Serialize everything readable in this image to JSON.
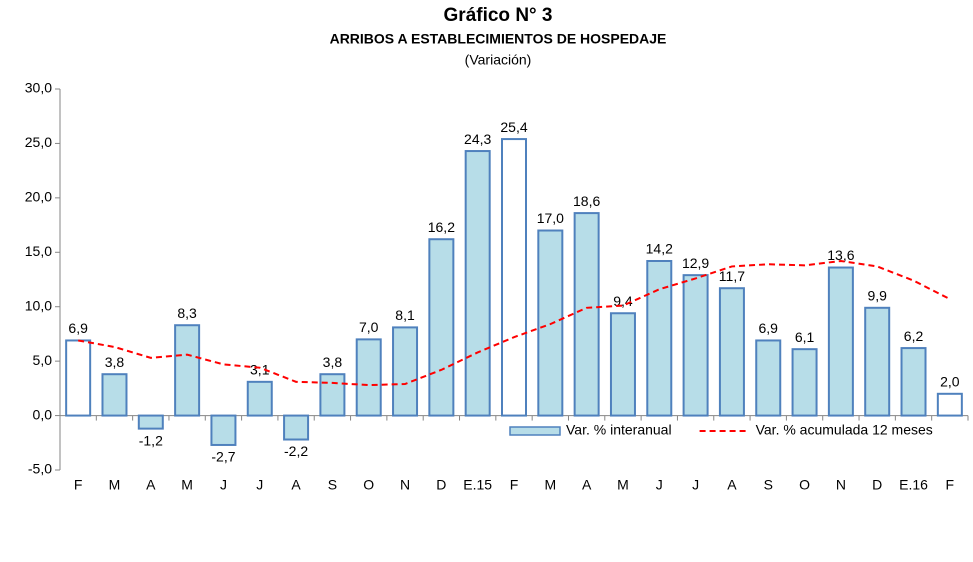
{
  "chart_data": {
    "type": "bar",
    "title": "Gráfico N° 3",
    "subtitle": "ARRIBOS A ESTABLECIMIENTOS DE HOSPEDAJE",
    "y_label": "(Variación)",
    "categories": [
      "F",
      "M",
      "A",
      "M",
      "J",
      "J",
      "A",
      "S",
      "O",
      "N",
      "D",
      "E.15",
      "F",
      "M",
      "A",
      "M",
      "J",
      "J",
      "A",
      "S",
      "O",
      "N",
      "D",
      "E.16",
      "F"
    ],
    "series": [
      {
        "name": "Var. % interanual",
        "type": "bar",
        "color": "#b7dde8",
        "edge_color": "#4f81bd",
        "colors": [
          "#ffffff",
          "#b7dde8",
          "#b7dde8",
          "#b7dde8",
          "#b7dde8",
          "#b7dde8",
          "#b7dde8",
          "#b7dde8",
          "#b7dde8",
          "#b7dde8",
          "#b7dde8",
          "#b7dde8",
          "#ffffff",
          "#b7dde8",
          "#b7dde8",
          "#b7dde8",
          "#b7dde8",
          "#b7dde8",
          "#b7dde8",
          "#b7dde8",
          "#b7dde8",
          "#b7dde8",
          "#b7dde8",
          "#b7dde8",
          "#ffffff"
        ],
        "values": [
          6.9,
          3.8,
          -1.2,
          8.3,
          -2.7,
          3.1,
          -2.2,
          3.8,
          7.0,
          8.1,
          16.2,
          24.3,
          25.4,
          17.0,
          18.6,
          9.4,
          14.2,
          12.9,
          11.7,
          6.9,
          6.1,
          13.6,
          9.9,
          6.2,
          2.0
        ],
        "value_labels": [
          "6,9",
          "3,8",
          "-1,2",
          "8,3",
          "-2,7",
          "3,1",
          "-2,2",
          "3,8",
          "7,0",
          "8,1",
          "16,2",
          "24,3",
          "25,4",
          "17,0",
          "18,6",
          "9,4",
          "14,2",
          "12,9",
          "11,7",
          "6,9",
          "6,1",
          "13,6",
          "9,9",
          "6,2",
          "2,0"
        ]
      },
      {
        "name": "Var. % acumulada 12 meses",
        "type": "line",
        "color": "#ff0000",
        "values": [
          6.9,
          6.3,
          5.3,
          5.6,
          4.7,
          4.4,
          3.1,
          3.0,
          2.8,
          2.9,
          4.2,
          5.8,
          7.2,
          8.4,
          9.9,
          10.1,
          11.6,
          12.6,
          13.7,
          13.9,
          13.8,
          14.2,
          13.7,
          12.4,
          10.7
        ]
      }
    ],
    "ylim": [
      -5,
      30
    ],
    "yticks": [
      {
        "value": -5,
        "label": "-5,0"
      },
      {
        "value": 0,
        "label": "0,0"
      },
      {
        "value": 5,
        "label": "5,0"
      },
      {
        "value": 10,
        "label": "10,0"
      },
      {
        "value": 15,
        "label": "15,0"
      },
      {
        "value": 20,
        "label": "20,0"
      },
      {
        "value": 25,
        "label": "25,0"
      },
      {
        "value": 30,
        "label": "30,0"
      }
    ],
    "legend": "lower right"
  }
}
